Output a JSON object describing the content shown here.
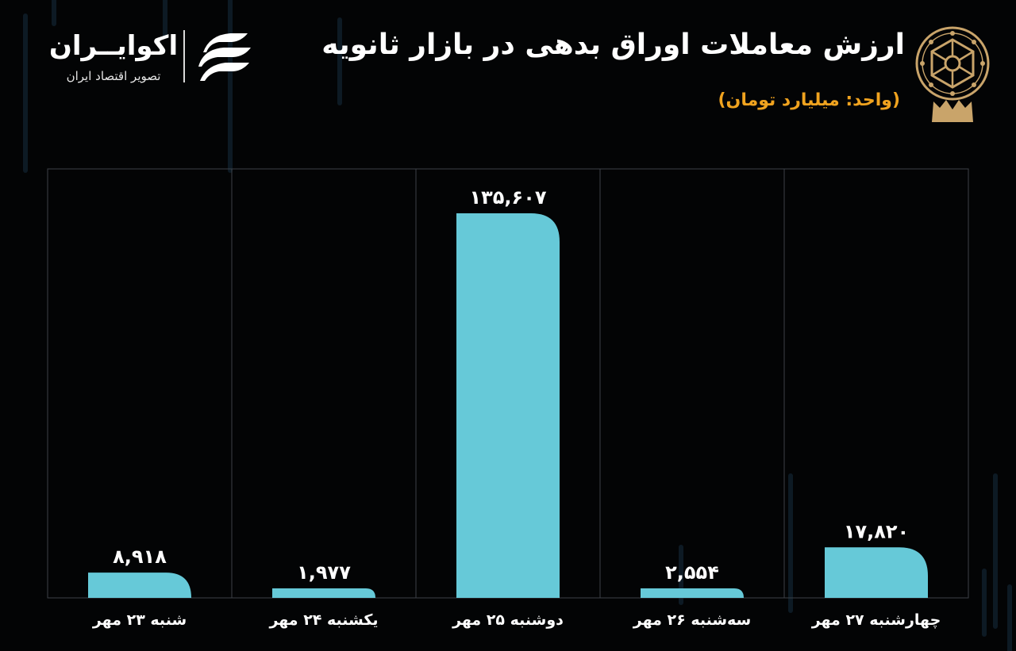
{
  "header": {
    "title": "ارزش معاملات اوراق بدهی در بازار ثانویه",
    "subtitle": "(واحد: میلیارد تومان)"
  },
  "brand": {
    "name": "اکوایــران",
    "tagline": "تصویر اقتصاد ایران"
  },
  "colors": {
    "background": "#030405",
    "bar": "#66c9d8",
    "grid": "#3c4148",
    "subtitle": "#f0a31f",
    "emblem": "#c9a46a",
    "text": "#ffffff"
  },
  "icons": {
    "emblem": "stock-exchange-emblem-icon",
    "brand": "ecoiran-logo-icon"
  },
  "chart_data": {
    "type": "bar",
    "title": "ارزش معاملات اوراق بدهی در بازار ثانویه",
    "subtitle": "(واحد: میلیارد تومان)",
    "xlabel": "",
    "ylabel": "",
    "categories": [
      "شنبه ۲۳ مهر",
      "یکشنبه ۲۴ مهر",
      "دوشنبه ۲۵ مهر",
      "سه‌شنبه ۲۶ مهر",
      "چهارشنبه ۲۷ مهر"
    ],
    "values": [
      8918,
      1977,
      135607,
      2554,
      17820
    ],
    "value_labels": [
      "۸,۹۱۸",
      "۱,۹۷۷",
      "۱۳۵,۶۰۷",
      "۲,۵۵۴",
      "۱۷,۸۲۰"
    ],
    "ylim": [
      0,
      135607
    ],
    "grid": true,
    "legend": "none"
  }
}
